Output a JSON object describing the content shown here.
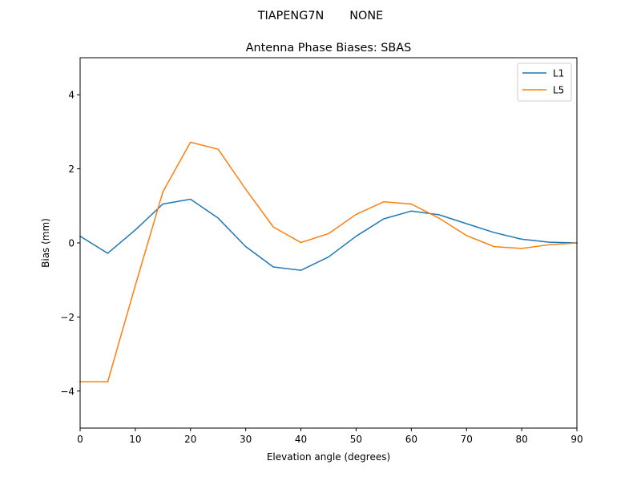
{
  "figure": {
    "suptitle": "TIAPENG7N       NONE"
  },
  "chart_data": {
    "type": "line",
    "title": "Antenna Phase Biases: SBAS",
    "xlabel": "Elevation angle (degrees)",
    "ylabel": "Bias (mm)",
    "xlim": [
      0,
      90
    ],
    "ylim": [
      -5,
      5
    ],
    "xticks": [
      0,
      10,
      20,
      30,
      40,
      50,
      60,
      70,
      80,
      90
    ],
    "yticks": [
      -4,
      -2,
      0,
      2,
      4
    ],
    "ytick_labels": [
      "−4",
      "−2",
      "0",
      "2",
      "4"
    ],
    "grid": false,
    "legend_position": "top-right",
    "x": [
      0,
      5,
      10,
      15,
      20,
      25,
      30,
      35,
      40,
      45,
      50,
      55,
      60,
      65,
      70,
      75,
      80,
      85,
      90
    ],
    "series": [
      {
        "name": "L1",
        "color": "#1f77b4",
        "values": [
          0.18,
          -0.28,
          0.35,
          1.05,
          1.18,
          0.67,
          -0.1,
          -0.65,
          -0.74,
          -0.38,
          0.18,
          0.65,
          0.86,
          0.76,
          0.52,
          0.28,
          0.1,
          0.02,
          0.0
        ]
      },
      {
        "name": "L5",
        "color": "#ff7f0e",
        "values": [
          -3.75,
          -3.75,
          -1.15,
          1.38,
          2.72,
          2.53,
          1.45,
          0.43,
          0.01,
          0.25,
          0.77,
          1.11,
          1.05,
          0.67,
          0.2,
          -0.1,
          -0.15,
          -0.05,
          0.0
        ]
      }
    ]
  }
}
